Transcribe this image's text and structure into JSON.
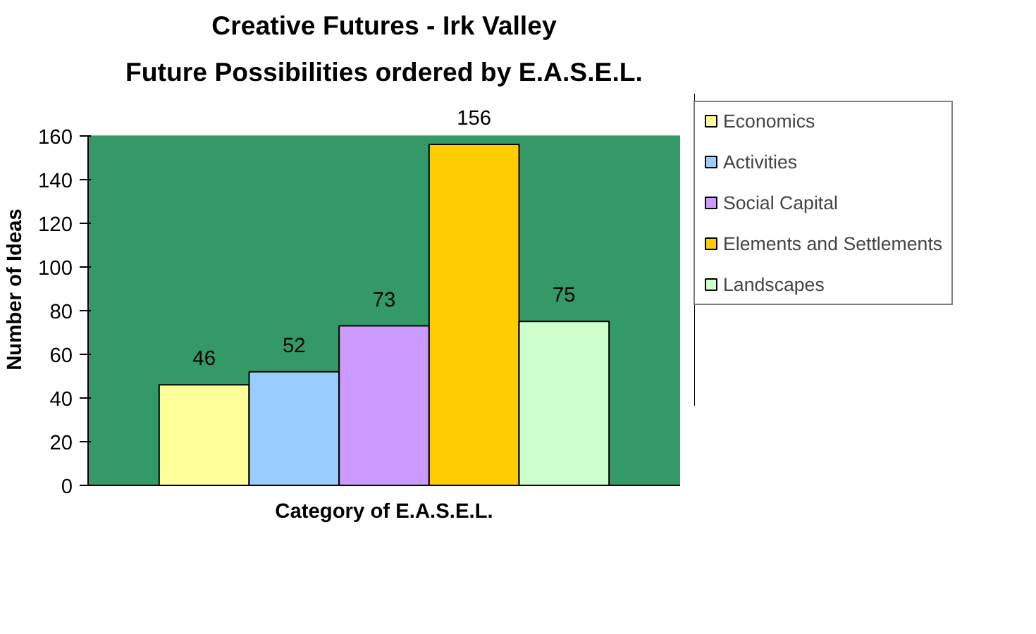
{
  "chart_data": {
    "type": "bar",
    "title": "Creative Futures - Irk Valley",
    "subtitle": "Future Possibilities ordered by E.A.S.E.L.",
    "xlabel": "Category of E.A.S.E.L.",
    "ylabel": "Number of Ideas",
    "categories": [
      null
    ],
    "series": [
      {
        "name": "Economics",
        "color": "#ffff99",
        "values": [
          46
        ]
      },
      {
        "name": "Activities",
        "color": "#99ccff",
        "values": [
          52
        ]
      },
      {
        "name": "Social Capital",
        "color": "#cc99ff",
        "values": [
          73
        ]
      },
      {
        "name": "Elements and Settlements",
        "color": "#ffcc00",
        "values": [
          156
        ]
      },
      {
        "name": "Landscapes",
        "color": "#ccffcc",
        "values": [
          75
        ]
      }
    ],
    "ylim": [
      0,
      160
    ],
    "yticks": [
      0,
      20,
      40,
      60,
      80,
      100,
      120,
      140,
      160
    ],
    "data_labels": true,
    "grid": false,
    "legend": "right"
  }
}
